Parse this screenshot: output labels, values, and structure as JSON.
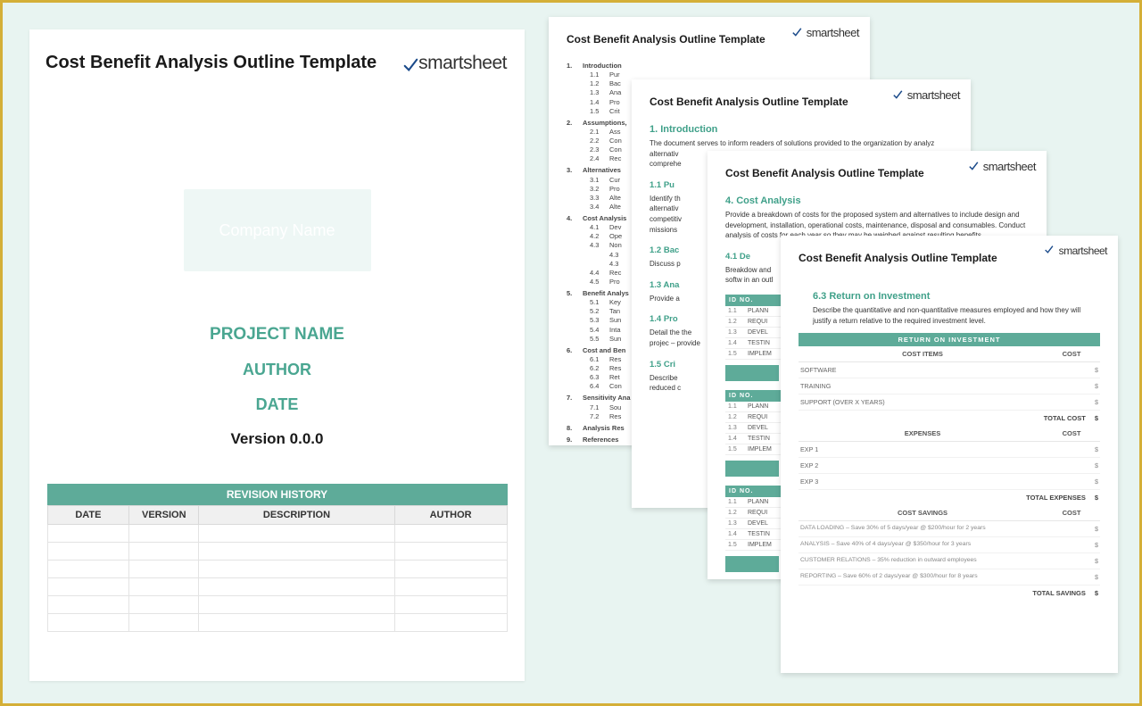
{
  "colors": {
    "accent": "#5eab99",
    "accent_text": "#3fa089",
    "page_bg": "#ffffff",
    "canvas_bg": "#e8f4f1",
    "border_gold": "#d4af37"
  },
  "logo": {
    "text": "smartsheet"
  },
  "main": {
    "title": "Cost Benefit Analysis Outline Template",
    "company_box": "Company Name",
    "project": "PROJECT NAME",
    "author": "AUTHOR",
    "date": "DATE",
    "version": "Version 0.0.0",
    "revision_caption": "REVISION HISTORY",
    "rev_cols": {
      "date": "DATE",
      "version": "VERSION",
      "description": "DESCRIPTION",
      "author": "AUTHOR"
    }
  },
  "page1": {
    "title": "Cost Benefit Analysis Outline Template",
    "toc": [
      {
        "n": "1.",
        "t": "Introduction",
        "sub": [
          {
            "n": "1.1",
            "t": "Pur"
          },
          {
            "n": "1.2",
            "t": "Bac"
          },
          {
            "n": "1.3",
            "t": "Ana"
          },
          {
            "n": "1.4",
            "t": "Pro"
          },
          {
            "n": "1.5",
            "t": "Crit"
          }
        ]
      },
      {
        "n": "2.",
        "t": "Assumptions,",
        "sub": [
          {
            "n": "2.1",
            "t": "Ass"
          },
          {
            "n": "2.2",
            "t": "Con"
          },
          {
            "n": "2.3",
            "t": "Con"
          },
          {
            "n": "2.4",
            "t": "Rec"
          }
        ]
      },
      {
        "n": "3.",
        "t": "Alternatives",
        "sub": [
          {
            "n": "3.1",
            "t": "Cur"
          },
          {
            "n": "3.2",
            "t": "Pro"
          },
          {
            "n": "3.3",
            "t": "Alte"
          },
          {
            "n": "3.4",
            "t": "Alte"
          }
        ]
      },
      {
        "n": "4.",
        "t": "Cost Analysis",
        "sub": [
          {
            "n": "4.1",
            "t": "Dev"
          },
          {
            "n": "4.2",
            "t": "Ope"
          },
          {
            "n": "4.3",
            "t": "Non"
          },
          {
            "n": "",
            "t": "4.3"
          },
          {
            "n": "",
            "t": "4.3"
          },
          {
            "n": "4.4",
            "t": "Rec"
          },
          {
            "n": "4.5",
            "t": "Pro"
          }
        ]
      },
      {
        "n": "5.",
        "t": "Benefit Analys",
        "sub": [
          {
            "n": "5.1",
            "t": "Key"
          },
          {
            "n": "5.2",
            "t": "Tan"
          },
          {
            "n": "5.3",
            "t": "Sun"
          },
          {
            "n": "5.4",
            "t": "Inta"
          },
          {
            "n": "5.5",
            "t": "Sun"
          }
        ]
      },
      {
        "n": "6.",
        "t": "Cost and Ben",
        "sub": [
          {
            "n": "6.1",
            "t": "Res"
          },
          {
            "n": "6.2",
            "t": "Res"
          },
          {
            "n": "6.3",
            "t": "Ret"
          },
          {
            "n": "6.4",
            "t": "Con"
          }
        ]
      },
      {
        "n": "7.",
        "t": "Sensitivity Ana",
        "sub": [
          {
            "n": "7.1",
            "t": "Sou"
          },
          {
            "n": "7.2",
            "t": "Res"
          }
        ]
      },
      {
        "n": "8.",
        "t": "Analysis Res",
        "sub": []
      },
      {
        "n": "9.",
        "t": "References",
        "sub": []
      }
    ]
  },
  "page2": {
    "title": "Cost Benefit Analysis Outline Template",
    "h1": "1.  Introduction",
    "body1": "The document serves to inform readers of solutions provided to the organization by analyz",
    "lines": [
      "alternativ",
      "comprehe"
    ],
    "h11": "1.1  Pu",
    "b11": "Identify th alternativ competitiv missions",
    "h12": "1.2  Bac",
    "b12": "Discuss p",
    "h13": "1.3  Ana",
    "b13": "Provide a",
    "h14": "1.4  Pro",
    "b14": "Detail the the projec – provide",
    "h15": "1.5  Cri",
    "b15": "Describe reduced c"
  },
  "page3": {
    "title": "Cost Benefit Analysis Outline Template",
    "h4": "4. Cost Analysis",
    "b4": "Provide a breakdown of costs for the proposed system and alternatives to include design and development, installation, operational costs, maintenance, disposal and consumables. Conduct analysis of costs for each year so they may be weighed against resulting benefits.",
    "h41": "4.1  De",
    "b41": "Breakdow and softw in an outl",
    "mini_header": "ID NO.",
    "mini_rows": [
      {
        "id": "1.1",
        "t": "PLANN"
      },
      {
        "id": "1.2",
        "t": "REQUI"
      },
      {
        "id": "1.3",
        "t": "DEVEL"
      },
      {
        "id": "1.4",
        "t": "TESTIN"
      },
      {
        "id": "1.5",
        "t": "IMPLEM"
      }
    ]
  },
  "page4": {
    "title": "Cost Benefit Analysis Outline Template",
    "h63": "6.3  Return on Investment",
    "b63": "Describe the quantitative and non-quantitative measures employed and how they will justify a return relative to the required investment level.",
    "roi_band": "RETURN ON INVESTMENT",
    "cost_items_h": "COST ITEMS",
    "cost_h": "COST",
    "cost_items": [
      "SOFTWARE",
      "TRAINING",
      "SUPPORT (OVER X YEARS)"
    ],
    "total_cost": "TOTAL COST",
    "expenses_h": "EXPENSES",
    "expenses": [
      "EXP 1",
      "EXP 2",
      "EXP 3"
    ],
    "total_exp": "TOTAL EXPENSES",
    "savings_h": "COST SAVINGS",
    "savings": [
      "DATA LOADING – Save 30% of 5 days/year @ $200/hour for 2 years",
      "ANALYSIS – Save 40% of 4 days/year @ $350/hour for 3 years",
      "CUSTOMER RELATIONS – 35% reduction in outward employees",
      "REPORTING – Save 60% of 2 days/year @ $300/hour for 8 years"
    ],
    "total_sav": "TOTAL SAVINGS",
    "dollar": "$"
  }
}
